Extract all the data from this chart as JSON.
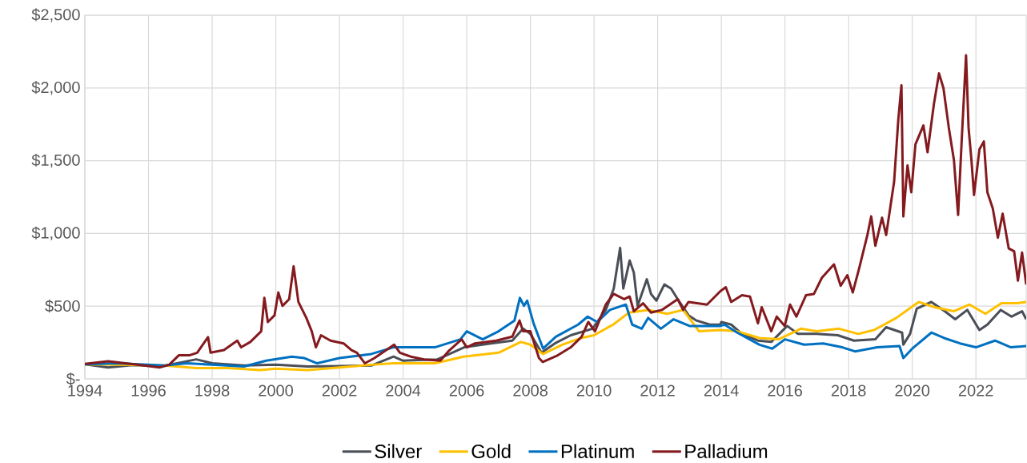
{
  "chart_data": {
    "type": "line",
    "xlim": [
      1994,
      2023.58
    ],
    "xticks": [
      1994,
      1996,
      1998,
      2000,
      2002,
      2004,
      2006,
      2008,
      2010,
      2012,
      2014,
      2016,
      2018,
      2020,
      2022
    ],
    "ylim": [
      0,
      2500
    ],
    "yticks": [
      {
        "value": 0,
        "label": "$-"
      },
      {
        "value": 500,
        "label": "$500"
      },
      {
        "value": 1000,
        "label": "$1,000"
      },
      {
        "value": 1500,
        "label": "$1,500"
      },
      {
        "value": 2000,
        "label": "$2,000"
      },
      {
        "value": 2500,
        "label": "$2,500"
      }
    ],
    "grid": true,
    "legend": "bottom",
    "series": [
      {
        "name": "Silver",
        "color": "#4a4e57",
        "x": [
          1994.0,
          1994.73,
          1995.5,
          1996.5,
          1997.5,
          1998.0,
          1999.0,
          2000.0,
          2001.0,
          2002.0,
          2003.0,
          2003.7,
          2004.0,
          2005.08,
          2005.92,
          2006.76,
          2007.43,
          2007.77,
          2008.0,
          2008.35,
          2008.77,
          2009.27,
          2009.95,
          2010.37,
          2010.62,
          2010.82,
          2010.92,
          2011.12,
          2011.25,
          2011.37,
          2011.66,
          2011.79,
          2011.96,
          2012.21,
          2012.42,
          2012.63,
          2012.97,
          2013.22,
          2013.64,
          2013.97,
          2014.0,
          2014.31,
          2014.65,
          2015.15,
          2015.57,
          2016.07,
          2016.41,
          2016.99,
          2017.66,
          2018.17,
          2018.84,
          2019.18,
          2019.68,
          2019.72,
          2019.93,
          2020.14,
          2020.6,
          2021.02,
          2021.35,
          2021.73,
          2022.11,
          2022.36,
          2022.78,
          2023.12,
          2023.45,
          2023.58
        ],
        "values": [
          100,
          79,
          95,
          90,
          134,
          107,
          92,
          97,
          85,
          88,
          92,
          153,
          125,
          134,
          217,
          244,
          263,
          345,
          309,
          180,
          244,
          300,
          345,
          474,
          621,
          900,
          621,
          814,
          731,
          502,
          685,
          584,
          538,
          649,
          621,
          548,
          437,
          401,
          373,
          373,
          391,
          373,
          309,
          263,
          254,
          364,
          309,
          309,
          300,
          263,
          272,
          355,
          318,
          235,
          309,
          483,
          529,
          465,
          410,
          474,
          336,
          373,
          474,
          428,
          465,
          410
        ]
      },
      {
        "name": "Gold",
        "color": "#ffc000",
        "x": [
          1994.0,
          1995.0,
          1996.5,
          1997.5,
          1998.5,
          1999.5,
          2000.0,
          2001.0,
          2002.0,
          2003.0,
          2003.7,
          2004.0,
          2005.0,
          2005.9,
          2007.0,
          2007.7,
          2008.0,
          2008.4,
          2009.0,
          2009.6,
          2010.0,
          2010.6,
          2011.1,
          2011.7,
          2012.3,
          2012.8,
          2013.3,
          2013.97,
          2014.5,
          2015.2,
          2015.8,
          2016.5,
          2017.0,
          2017.7,
          2018.3,
          2018.8,
          2019.5,
          2020.2,
          2020.7,
          2021.3,
          2021.8,
          2022.3,
          2022.8,
          2023.3,
          2023.58
        ],
        "values": [
          100,
          97,
          92,
          74,
          74,
          61,
          70,
          61,
          79,
          97,
          107,
          107,
          107,
          153,
          180,
          254,
          235,
          171,
          235,
          281,
          300,
          373,
          456,
          474,
          447,
          474,
          327,
          336,
          327,
          281,
          272,
          345,
          327,
          345,
          309,
          336,
          419,
          529,
          493,
          465,
          511,
          447,
          520,
          520,
          529
        ]
      },
      {
        "name": "Platinum",
        "color": "#0070c0",
        "x": [
          1994.0,
          1995.0,
          1996.5,
          1997.2,
          1998.0,
          1999.0,
          1999.7,
          2000.5,
          2000.9,
          2001.3,
          2002.0,
          2003.0,
          2003.7,
          2004.0,
          2005.0,
          2005.8,
          2006.0,
          2006.5,
          2007.0,
          2007.5,
          2007.67,
          2007.8,
          2007.9,
          2008.1,
          2008.4,
          2008.8,
          2009.5,
          2009.8,
          2010.1,
          2010.5,
          2011.0,
          2011.2,
          2011.5,
          2011.7,
          2012.1,
          2012.5,
          2013.0,
          2013.5,
          2013.97,
          2014.1,
          2014.5,
          2015.2,
          2015.6,
          2016.0,
          2016.6,
          2017.2,
          2017.8,
          2018.2,
          2018.9,
          2019.6,
          2019.72,
          2020.0,
          2020.6,
          2021.0,
          2021.5,
          2022.0,
          2022.6,
          2023.1,
          2023.58
        ],
        "values": [
          100,
          107,
          92,
          107,
          97,
          85,
          125,
          153,
          143,
          107,
          143,
          171,
          217,
          217,
          217,
          272,
          327,
          272,
          327,
          401,
          557,
          502,
          538,
          382,
          208,
          290,
          373,
          428,
          391,
          474,
          511,
          373,
          345,
          419,
          345,
          410,
          364,
          364,
          364,
          373,
          318,
          235,
          208,
          272,
          235,
          244,
          217,
          189,
          217,
          226,
          143,
          208,
          318,
          281,
          244,
          217,
          263,
          217,
          226
        ]
      },
      {
        "name": "Palladium",
        "color": "#841a1e",
        "x": [
          1994.0,
          1994.73,
          1995.44,
          1996.36,
          1996.65,
          1996.95,
          1997.28,
          1997.53,
          1997.87,
          1997.95,
          1998.37,
          1998.79,
          1998.91,
          1999.2,
          1999.54,
          1999.64,
          1999.75,
          1999.96,
          2000.08,
          2000.21,
          2000.42,
          2000.56,
          2000.71,
          2000.96,
          2001.13,
          2001.26,
          2001.42,
          2001.72,
          2002.13,
          2002.38,
          2002.55,
          2002.8,
          2003.1,
          2003.72,
          2003.9,
          2004.24,
          2004.66,
          2005.17,
          2005.42,
          2005.84,
          2006.0,
          2006.26,
          2006.93,
          2007.43,
          2007.66,
          2007.77,
          2008.0,
          2008.27,
          2008.39,
          2008.86,
          2009.27,
          2009.61,
          2009.82,
          2010.03,
          2010.37,
          2010.62,
          2010.95,
          2011.12,
          2011.25,
          2011.54,
          2011.79,
          2012.13,
          2012.63,
          2012.8,
          2012.97,
          2013.55,
          2013.97,
          2014.14,
          2014.31,
          2014.65,
          2014.9,
          2015.15,
          2015.27,
          2015.57,
          2015.74,
          2015.99,
          2016.16,
          2016.36,
          2016.66,
          2016.91,
          2017.16,
          2017.54,
          2017.75,
          2017.96,
          2018.13,
          2018.34,
          2018.59,
          2018.71,
          2018.84,
          2019.05,
          2019.18,
          2019.43,
          2019.56,
          2019.66,
          2019.72,
          2019.85,
          2019.97,
          2020.1,
          2020.35,
          2020.48,
          2020.68,
          2020.84,
          2020.98,
          2021.15,
          2021.31,
          2021.44,
          2021.56,
          2021.69,
          2021.77,
          2021.86,
          2021.94,
          2022.11,
          2022.25,
          2022.36,
          2022.53,
          2022.69,
          2022.84,
          2023.03,
          2023.2,
          2023.32,
          2023.45,
          2023.58
        ],
        "values": [
          103,
          121,
          103,
          79,
          97,
          162,
          162,
          180,
          287,
          180,
          198,
          263,
          217,
          254,
          327,
          557,
          391,
          437,
          594,
          502,
          548,
          774,
          529,
          419,
          327,
          217,
          300,
          263,
          244,
          198,
          180,
          107,
          143,
          235,
          180,
          153,
          134,
          125,
          189,
          272,
          217,
          244,
          263,
          290,
          401,
          327,
          327,
          143,
          116,
          162,
          217,
          290,
          391,
          327,
          511,
          584,
          548,
          566,
          465,
          520,
          456,
          474,
          548,
          474,
          529,
          511,
          603,
          630,
          529,
          575,
          566,
          382,
          493,
          327,
          428,
          364,
          511,
          428,
          575,
          584,
          695,
          787,
          640,
          713,
          594,
          768,
          989,
          1117,
          915,
          1108,
          989,
          1356,
          1779,
          2018,
          1117,
          1467,
          1283,
          1613,
          1742,
          1558,
          1889,
          2100,
          1999,
          1724,
          1503,
          1127,
          1669,
          2224,
          1724,
          1503,
          1264,
          1577,
          1632,
          1283,
          1172,
          970,
          1136,
          897,
          878,
          676,
          869,
          649
        ]
      }
    ]
  }
}
